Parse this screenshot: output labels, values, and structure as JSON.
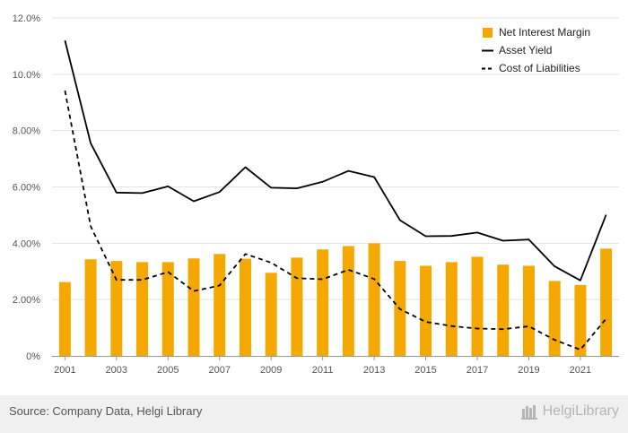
{
  "chart_data": {
    "type": "bar+line",
    "x": [
      2001,
      2002,
      2003,
      2004,
      2005,
      2006,
      2007,
      2008,
      2009,
      2010,
      2011,
      2012,
      2013,
      2014,
      2015,
      2016,
      2017,
      2018,
      2019,
      2020,
      2021,
      2022
    ],
    "x_tick_labels": [
      "2001",
      "2003",
      "2005",
      "2007",
      "2009",
      "2011",
      "2013",
      "2015",
      "2017",
      "2019",
      "2021"
    ],
    "y_tick_labels": [
      "0%",
      "2.00%",
      "4.00%",
      "6.00%",
      "8.00%",
      "10.0%",
      "12.0%"
    ],
    "ylim": [
      0,
      12
    ],
    "grid": "horizontal",
    "legend_position": "top-right",
    "series": [
      {
        "name": "Net Interest Margin",
        "kind": "bar",
        "color": "#F5A800",
        "values": [
          2.62,
          3.43,
          3.37,
          3.33,
          3.33,
          3.46,
          3.62,
          3.45,
          2.95,
          3.49,
          3.78,
          3.9,
          4.0,
          3.37,
          3.2,
          3.33,
          3.52,
          3.24,
          3.2,
          2.66,
          2.52,
          3.81
        ]
      },
      {
        "name": "Asset Yield",
        "kind": "line",
        "style": "solid",
        "color": "#000000",
        "values": [
          11.2,
          7.55,
          5.8,
          5.78,
          6.02,
          5.49,
          5.82,
          6.7,
          5.97,
          5.95,
          6.18,
          6.57,
          6.35,
          4.82,
          4.25,
          4.26,
          4.38,
          4.09,
          4.13,
          3.18,
          2.68,
          5.01
        ]
      },
      {
        "name": "Cost of Liabilities",
        "kind": "line",
        "style": "dashed",
        "color": "#000000",
        "values": [
          9.42,
          4.6,
          2.7,
          2.7,
          2.98,
          2.3,
          2.5,
          3.62,
          3.31,
          2.76,
          2.72,
          3.06,
          2.73,
          1.66,
          1.21,
          1.06,
          0.97,
          0.95,
          1.05,
          0.57,
          0.22,
          1.32
        ]
      }
    ]
  },
  "footer": {
    "source": "Source: Company Data, Helgi Library",
    "logo_text": "HelgiLibrary"
  }
}
